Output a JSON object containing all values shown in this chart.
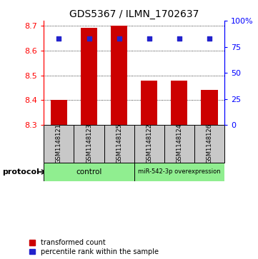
{
  "title": "GDS5367 / ILMN_1702637",
  "samples": [
    "GSM1148121",
    "GSM1148123",
    "GSM1148125",
    "GSM1148122",
    "GSM1148124",
    "GSM1148126"
  ],
  "bar_values": [
    8.4,
    8.69,
    8.7,
    8.48,
    8.48,
    8.44
  ],
  "bar_bottom": 8.3,
  "percentile_val": 83,
  "bar_color": "#cc0000",
  "percentile_color": "#2222cc",
  "left_ylim": [
    8.3,
    8.72
  ],
  "right_ylim": [
    0,
    100
  ],
  "right_yticks": [
    0,
    25,
    50,
    75,
    100
  ],
  "right_yticklabels": [
    "0",
    "25",
    "50",
    "75",
    "100%"
  ],
  "left_yticks": [
    8.3,
    8.4,
    8.5,
    8.6,
    8.7
  ],
  "grid_values": [
    8.4,
    8.5,
    8.6,
    8.7
  ],
  "control_label": "control",
  "mir_label": "miR-542-3p overexpression",
  "group_color": "#90ee90",
  "sample_box_color": "#c8c8c8",
  "protocol_label": "protocol",
  "legend_red_label": "transformed count",
  "legend_blue_label": "percentile rank within the sample"
}
